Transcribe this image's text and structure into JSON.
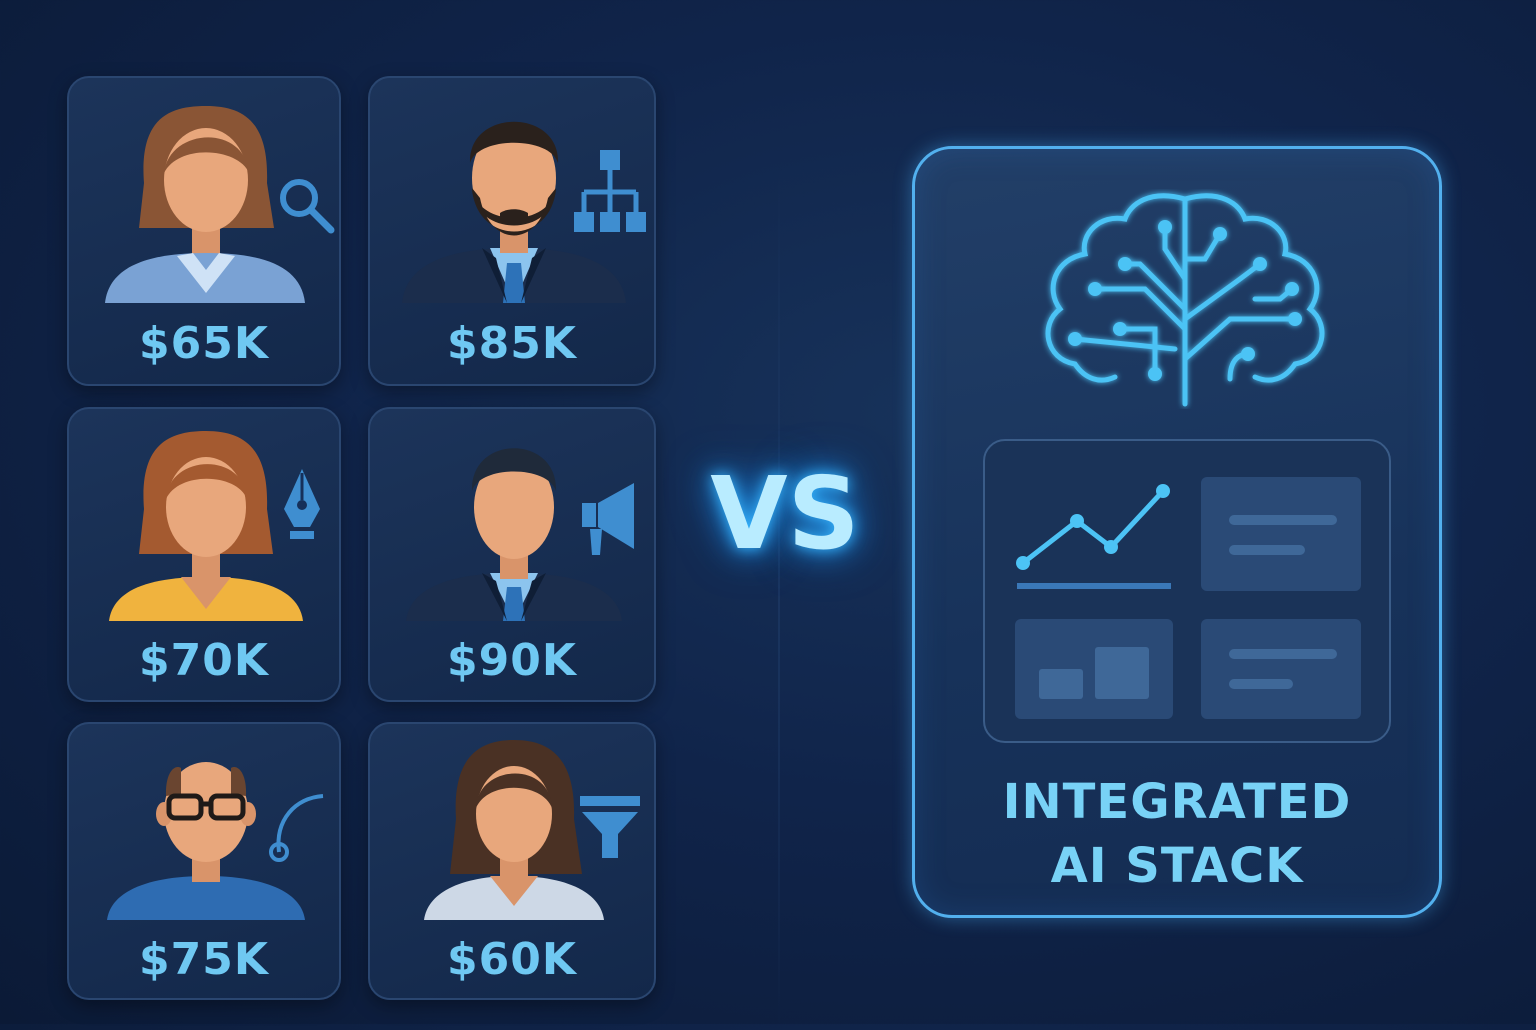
{
  "people": [
    {
      "salary": "$65K",
      "role_icon": "search-icon"
    },
    {
      "salary": "$85K",
      "role_icon": "org-chart-icon"
    },
    {
      "salary": "$70K",
      "role_icon": "pen-nib-icon"
    },
    {
      "salary": "$90K",
      "role_icon": "megaphone-icon"
    },
    {
      "salary": "$75K",
      "role_icon": "bezier-curve-icon"
    },
    {
      "salary": "$60K",
      "role_icon": "funnel-icon"
    }
  ],
  "comparison": {
    "label": "VS"
  },
  "ai_stack": {
    "title_line1": "INTEGRATED",
    "title_line2": "AI STACK",
    "icons": [
      "brain-circuit-icon",
      "line-chart-icon",
      "dashboard-panel-icon"
    ]
  },
  "colors": {
    "background": "#10244a",
    "accent": "#6fc8f2",
    "glow": "#37b6ff"
  }
}
